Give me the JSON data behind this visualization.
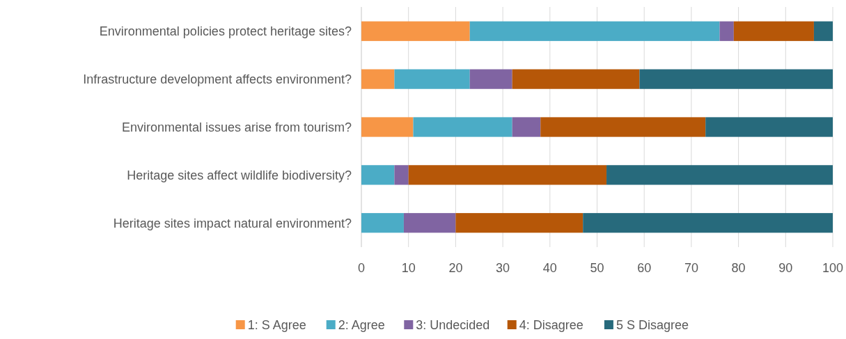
{
  "chart_data": {
    "type": "bar",
    "orientation": "horizontal",
    "stacked": true,
    "categories": [
      "Environmental policies protect heritage sites?",
      "Infrastructure development affects environment?",
      "Environmental issues arise from tourism?",
      "Heritage sites affect wildlife biodiversity?",
      "Heritage sites impact natural environment?"
    ],
    "series": [
      {
        "name": "1: S Agree",
        "color": "#f79646",
        "values": [
          23,
          7,
          11,
          0,
          0
        ]
      },
      {
        "name": "2: Agree",
        "color": "#4bacc6",
        "values": [
          53,
          16,
          21,
          7,
          9
        ]
      },
      {
        "name": "3: Undecided",
        "color": "#8064a2",
        "values": [
          3,
          9,
          6,
          3,
          11
        ]
      },
      {
        "name": "4: Disagree",
        "color": "#b65708",
        "values": [
          17,
          27,
          35,
          42,
          27
        ]
      },
      {
        "name": "5 S Disagree",
        "color": "#276a7c",
        "values": [
          4,
          41,
          27,
          48,
          53
        ]
      }
    ],
    "xlim": [
      0,
      100
    ],
    "xticks": [
      0,
      10,
      20,
      30,
      40,
      50,
      60,
      70,
      80,
      90,
      100
    ],
    "grid": "x",
    "legend": "bottom"
  }
}
